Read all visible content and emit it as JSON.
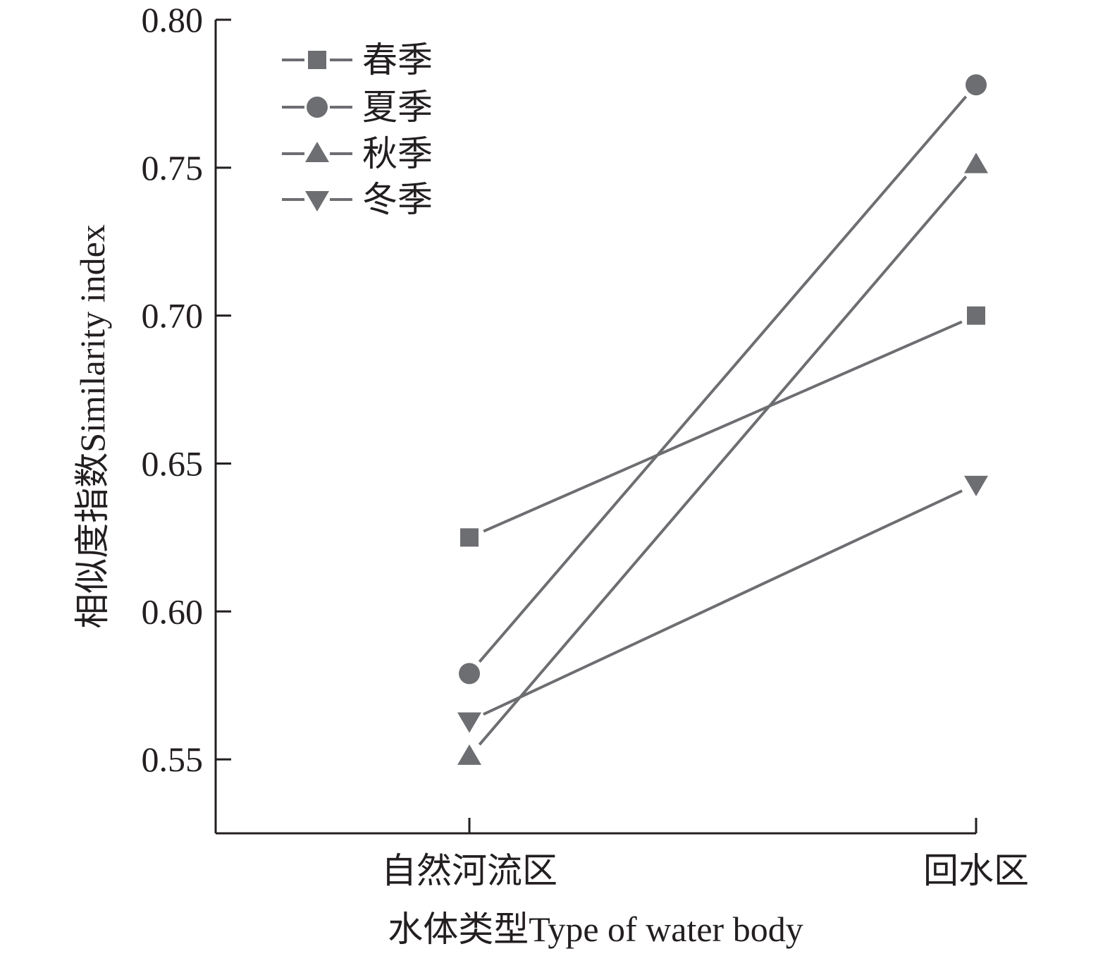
{
  "chart_data": {
    "type": "line",
    "categories": [
      "自然河流区",
      "回水区"
    ],
    "series": [
      {
        "name": "春季",
        "marker": "square",
        "values": [
          0.625,
          0.7
        ]
      },
      {
        "name": "夏季",
        "marker": "circle",
        "values": [
          0.579,
          0.778
        ]
      },
      {
        "name": "秋季",
        "marker": "triangle-up",
        "values": [
          0.551,
          0.751
        ]
      },
      {
        "name": "冬季",
        "marker": "triangle-down",
        "values": [
          0.563,
          0.643
        ]
      }
    ],
    "xlabel": "水体类型Type of water body",
    "ylabel": "相似度指数Similarity index",
    "ylim": [
      0.525,
      0.8
    ],
    "yticks": [
      0.55,
      0.6,
      0.65,
      0.7,
      0.75,
      0.8
    ],
    "ytick_labels": [
      "0.55",
      "0.60",
      "0.65",
      "0.70",
      "0.75",
      "0.80"
    ],
    "grid": false,
    "legend_position": "top-left",
    "colors": {
      "series": "#6d6e71",
      "axis": "#231f20",
      "text": "#231f20"
    }
  }
}
